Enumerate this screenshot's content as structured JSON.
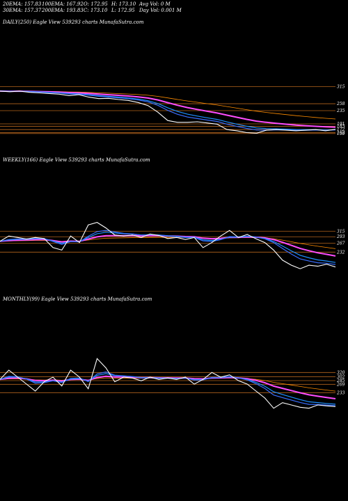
{
  "header": {
    "row1": [
      "20EMA: 157.83",
      "100EMA: 167.92",
      "O: 172.95",
      "H: 173.10",
      "Avg Vol: 0  M"
    ],
    "row2": [
      "30EMA: 157.37",
      "200EMA: 193.83",
      "C: 173.10",
      "L: 172.95",
      "Day Vol: 0.001 M"
    ]
  },
  "panels": [
    {
      "title": "DAILY(250) Eagle   View  539293 charts MunafaSutra.com"
    },
    {
      "title": "WEEKLY(166) Eagle   View  539293 charts MunafaSutra.com"
    },
    {
      "title": "MONTHLY(99) Eagle   View  539293 charts MunafaSutra.com"
    }
  ],
  "colors": {
    "background": "#000000",
    "price": "#ffffff",
    "ema20": "#3b6fff",
    "ema30": "#1e90ff",
    "ema100": "#ff4dff",
    "ema200": "#ff8c00",
    "level": "#b5651d"
  },
  "chart_data": [
    {
      "type": "line",
      "label": "DAILY(250)",
      "levels": [
        315,
        258,
        235,
        191,
        183,
        172,
        162,
        159
      ],
      "level_labels": [
        "315",
        "258",
        "235",
        "191",
        "183",
        "172",
        "162",
        "159"
      ],
      "series": [
        {
          "name": "price",
          "values": [
            300,
            298,
            300,
            296,
            294,
            292,
            290,
            285,
            288,
            280,
            275,
            276,
            272,
            269,
            262,
            252,
            230,
            202,
            196,
            196,
            198,
            194,
            190,
            172,
            168,
            162,
            160,
            170,
            172,
            170,
            168,
            170,
            172,
            168,
            173
          ]
        }
      ]
    },
    {
      "type": "line",
      "label": "WEEKLY(166)",
      "levels": [
        315,
        293,
        267,
        232
      ],
      "level_labels": [
        "315",
        "293",
        "267",
        "232"
      ],
      "series": [
        {
          "name": "price",
          "values": [
            275,
            296,
            290,
            284,
            290,
            286,
            250,
            240,
            296,
            270,
            340,
            350,
            328,
            300,
            296,
            300,
            290,
            304,
            298,
            286,
            290,
            282,
            290,
            250,
            270,
            296,
            318,
            290,
            302,
            285,
            270,
            240,
            200,
            180,
            166,
            180,
            176,
            184,
            173
          ]
        }
      ]
    },
    {
      "type": "line",
      "label": "MONTHLY(99)",
      "levels": [
        320,
        302,
        285,
        269,
        233
      ],
      "level_labels": [
        "320",
        "302",
        "285",
        "269",
        "233"
      ],
      "series": [
        {
          "name": "price",
          "values": [
            290,
            330,
            300,
            270,
            240,
            280,
            300,
            262,
            330,
            300,
            250,
            380,
            340,
            280,
            300,
            296,
            284,
            300,
            290,
            296,
            290,
            300,
            270,
            290,
            320,
            300,
            310,
            285,
            270,
            240,
            210,
            166,
            190,
            180,
            170,
            166,
            180,
            176,
            173
          ]
        }
      ]
    }
  ]
}
